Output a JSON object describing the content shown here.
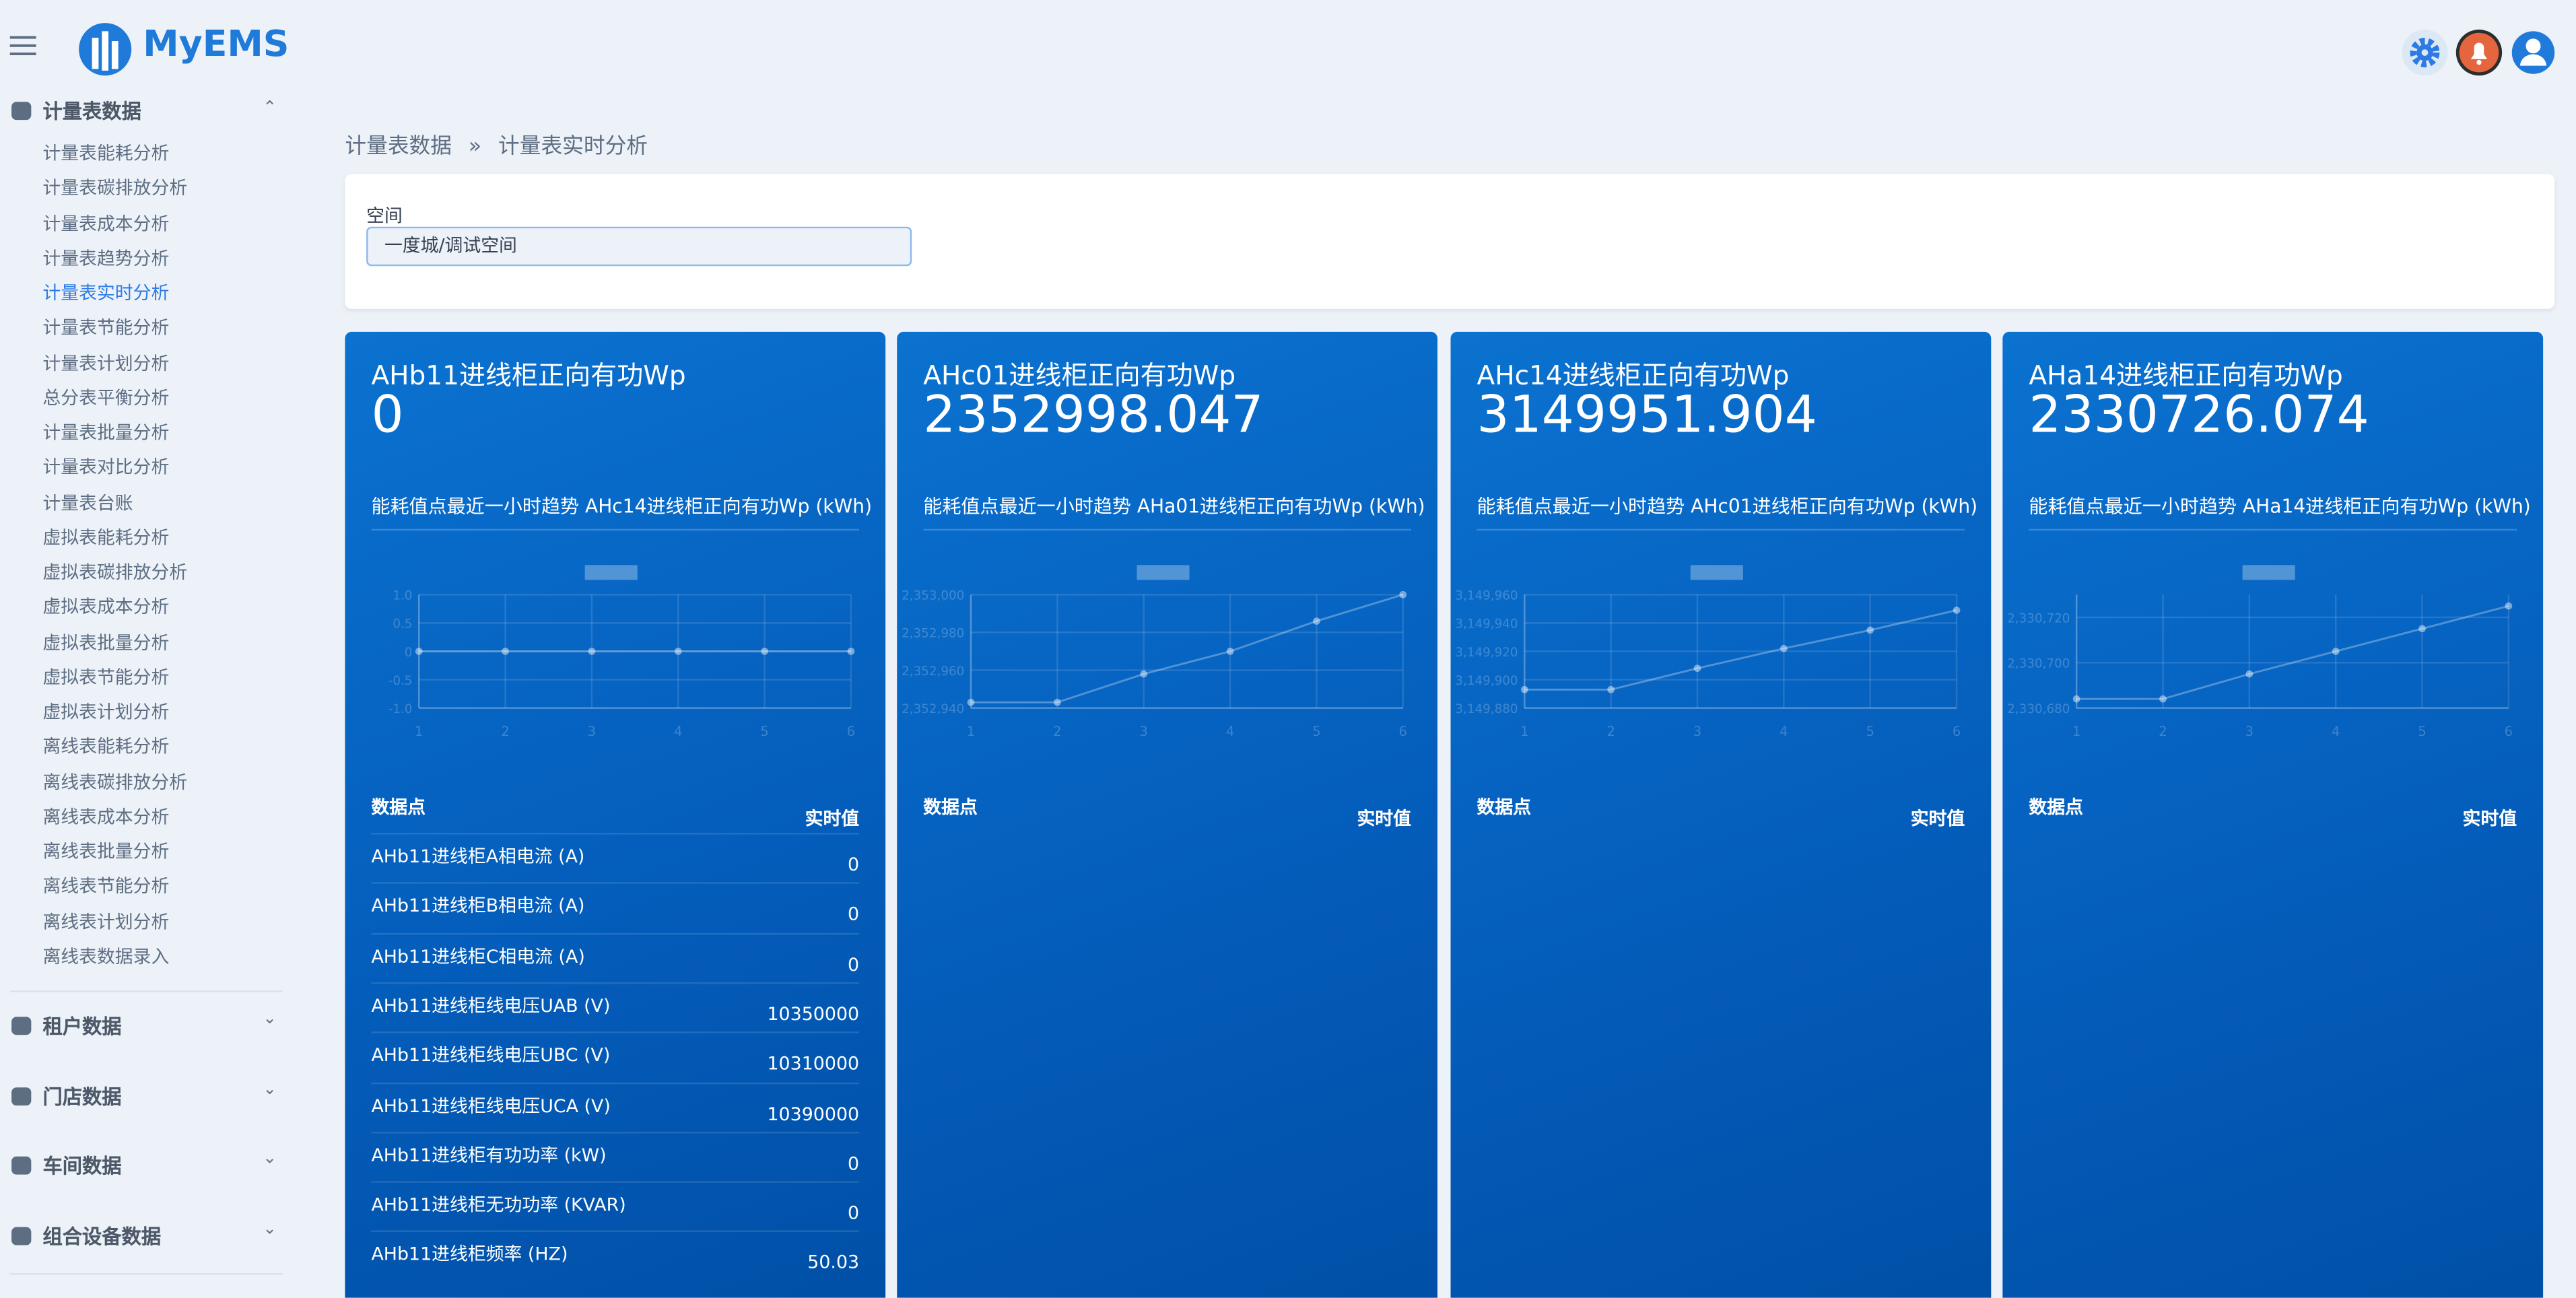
{
  "header": {
    "brand": "MyEMS"
  },
  "sidebar": {
    "active_index": 4,
    "sections": [
      {
        "label": "计量表数据",
        "items": [
          "计量表能耗分析",
          "计量表碳排放分析",
          "计量表成本分析",
          "计量表趋势分析",
          "计量表实时分析",
          "计量表节能分析",
          "计量表计划分析",
          "总分表平衡分析",
          "计量表批量分析",
          "计量表对比分析",
          "计量表台账",
          "虚拟表能耗分析",
          "虚拟表碳排放分析",
          "虚拟表成本分析",
          "虚拟表批量分析",
          "虚拟表节能分析",
          "虚拟表计划分析",
          "离线表能耗分析",
          "离线表碳排放分析",
          "离线表成本分析",
          "离线表批量分析",
          "离线表节能分析",
          "离线表计划分析",
          "离线表数据录入"
        ]
      },
      {
        "label": "租户数据"
      },
      {
        "label": "门店数据"
      },
      {
        "label": "车间数据"
      },
      {
        "label": "组合设备数据"
      }
    ]
  },
  "breadcrumb": {
    "items": [
      "计量表数据",
      "计量表实时分析"
    ],
    "separator": "»"
  },
  "filter": {
    "label": "空间",
    "value": "一度城/调试空间"
  },
  "cards": [
    {
      "title": "AHb11进线柜正向有功Wp",
      "value": 0,
      "trend_title": "能耗值点最近一小时趋势 AHc14进线柜正向有功Wp (kWh)",
      "chart": {
        "type": "line",
        "x": [
          1,
          2,
          3,
          4,
          5,
          6
        ],
        "values": [
          0,
          0,
          0,
          0,
          0,
          0
        ],
        "xlim": [
          1,
          6
        ],
        "ylim": [
          -1,
          1
        ],
        "yticks": [
          {
            "value": 1,
            "label": "1.0"
          },
          0.5,
          0,
          -0.5,
          {
            "value": -1,
            "label": "-1.0"
          }
        ],
        "grid": true
      },
      "table": {
        "headers": [
          "数据点",
          "实时值"
        ],
        "rows": [
          [
            "AHb11进线柜A相电流 (A)",
            0
          ],
          [
            "AHb11进线柜B相电流 (A)",
            0
          ],
          [
            "AHb11进线柜C相电流 (A)",
            0
          ],
          [
            "AHb11进线柜线电压UAB (V)",
            10350000
          ],
          [
            "AHb11进线柜线电压UBC (V)",
            10310000
          ],
          [
            "AHb11进线柜线电压UCA (V)",
            10390000
          ],
          [
            "AHb11进线柜有功功率 (kW)",
            0
          ],
          [
            "AHb11进线柜无功功率 (KVAR)",
            0
          ],
          [
            "AHb11进线柜频率 (HZ)",
            50.03
          ]
        ]
      }
    },
    {
      "title": "AHc01进线柜正向有功Wp",
      "value": 2352998.047,
      "trend_title": "能耗值点最近一小时趋势 AHa01进线柜正向有功Wp (kWh)",
      "chart": {
        "type": "line",
        "x": [
          1,
          2,
          3,
          4,
          5,
          6
        ],
        "values": [
          2352943,
          2352943,
          2352958,
          2352970,
          2352986,
          2353000
        ],
        "xlim": [
          1,
          6
        ],
        "ylim": [
          2352940,
          2353000
        ],
        "yticks": [
          {
            "value": 2353000,
            "label": "2,353,000"
          },
          {
            "value": 2352980,
            "label": "2,352,980"
          },
          {
            "value": 2352960,
            "label": "2,352,960"
          },
          {
            "value": 2352940,
            "label": "2,352,940"
          }
        ],
        "grid": true
      },
      "table": {
        "headers": [
          "数据点",
          "实时值"
        ],
        "rows": []
      }
    },
    {
      "title": "AHc14进线柜正向有功Wp",
      "value": 3149951.904,
      "trend_title": "能耗值点最近一小时趋势 AHc01进线柜正向有功Wp (kWh)",
      "chart": {
        "type": "line",
        "x": [
          1,
          2,
          3,
          4,
          5,
          6
        ],
        "values": [
          3149893,
          3149893,
          3149908,
          3149922,
          3149935,
          3149949
        ],
        "xlim": [
          1,
          6
        ],
        "ylim": [
          3149880,
          3149960
        ],
        "yticks": [
          {
            "value": 3149960,
            "label": "3,149,960"
          },
          {
            "value": 3149940,
            "label": "3,149,940"
          },
          {
            "value": 3149920,
            "label": "3,149,920"
          },
          {
            "value": 3149900,
            "label": "3,149,900"
          },
          {
            "value": 3149880,
            "label": "3,149,880"
          }
        ],
        "grid": true
      },
      "table": {
        "headers": [
          "数据点",
          "实时值"
        ],
        "rows": []
      }
    },
    {
      "title": "AHa14进线柜正向有功Wp",
      "value": 2330726.074,
      "trend_title": "能耗值点最近一小时趋势 AHa14进线柜正向有功Wp (kWh)",
      "chart": {
        "type": "line",
        "x": [
          1,
          2,
          3,
          4,
          5,
          6
        ],
        "values": [
          2330684,
          2330684,
          2330695,
          2330705,
          2330715,
          2330725
        ],
        "xlim": [
          1,
          6
        ],
        "ylim": [
          2330680,
          2330730
        ],
        "yticks": [
          {
            "value": 2330720,
            "label": "2,330,720"
          },
          {
            "value": 2330700,
            "label": "2,330,700"
          },
          {
            "value": 2330680,
            "label": "2,330,680"
          }
        ],
        "grid": true
      },
      "table": {
        "headers": [
          "数据点",
          "实时值"
        ],
        "rows": []
      }
    }
  ]
}
